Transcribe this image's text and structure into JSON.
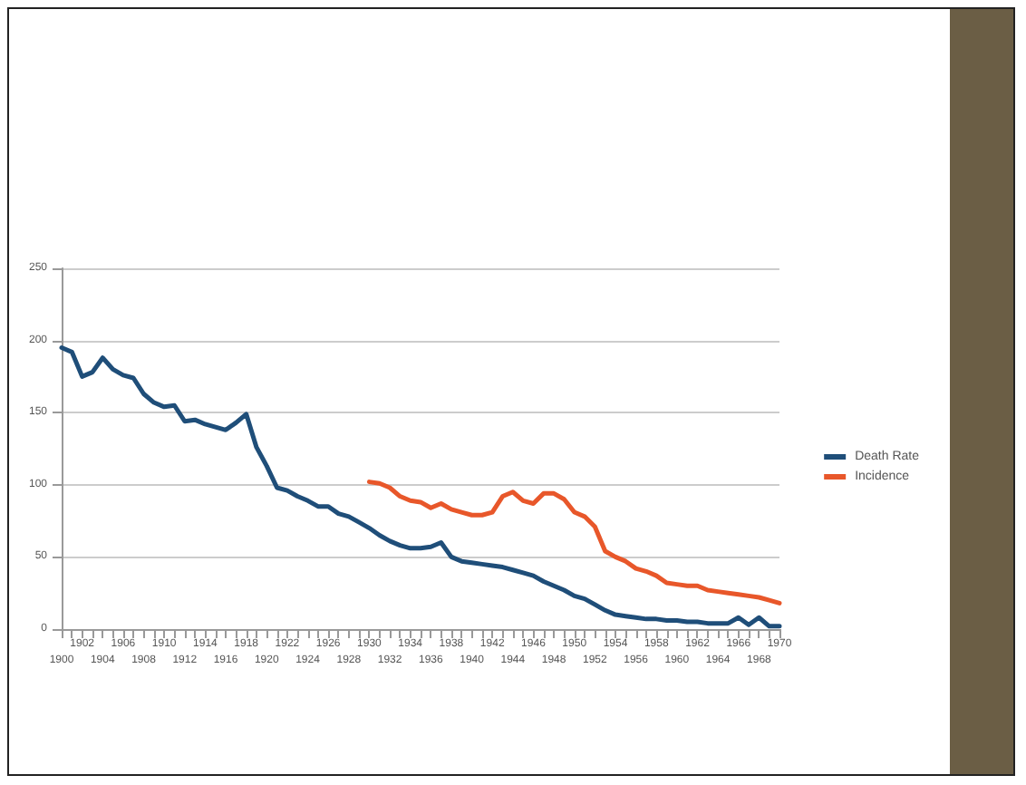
{
  "chart_data": {
    "type": "line",
    "categories": [
      "1900",
      null,
      "1902",
      null,
      "1904",
      null,
      "1906",
      null,
      "1908",
      null,
      "1910",
      null,
      "1912",
      null,
      "1914",
      null,
      "1916",
      null,
      "1918",
      null,
      "1920",
      null,
      "1922",
      null,
      "1924",
      null,
      "1926",
      null,
      "1928",
      null,
      "1930",
      null,
      "1932",
      null,
      "1934",
      null,
      "1936",
      null,
      "1938",
      null,
      "1940",
      null,
      "1942",
      null,
      "1944",
      null,
      "1946",
      null,
      "1948",
      null,
      "1950",
      null,
      "1952",
      null,
      "1954",
      null,
      "1956",
      null,
      "1958",
      null,
      "1960",
      null,
      "1962",
      null,
      "1964",
      null,
      "1966",
      null,
      "1968",
      null,
      "1970"
    ],
    "series": [
      {
        "name": "Death Rate",
        "color": "#1f4e79",
        "values": [
          195,
          192,
          175,
          178,
          188,
          180,
          176,
          174,
          163,
          157,
          154,
          155,
          144,
          145,
          142,
          140,
          138,
          143,
          149,
          126,
          113,
          98,
          96,
          92,
          89,
          85,
          85,
          80,
          78,
          74,
          70,
          65,
          61,
          58,
          56,
          56,
          57,
          60,
          50,
          47,
          46,
          45,
          44,
          43,
          41,
          39,
          37,
          33,
          30,
          27,
          23,
          21,
          17,
          13,
          10,
          9,
          8,
          7,
          7,
          6,
          6,
          5,
          5,
          4,
          4,
          4,
          8,
          3,
          8,
          2,
          2
        ]
      },
      {
        "name": "Incidence",
        "color": "#e8572a",
        "values": [
          null,
          null,
          null,
          null,
          null,
          null,
          null,
          null,
          null,
          null,
          null,
          null,
          null,
          null,
          null,
          null,
          null,
          null,
          null,
          null,
          null,
          null,
          null,
          null,
          null,
          null,
          null,
          null,
          null,
          null,
          102,
          101,
          98,
          92,
          89,
          88,
          84,
          87,
          83,
          81,
          79,
          79,
          81,
          92,
          95,
          89,
          87,
          94,
          94,
          90,
          81,
          78,
          71,
          54,
          50,
          47,
          42,
          40,
          37,
          32,
          31,
          30,
          30,
          27,
          26,
          25,
          24,
          23,
          22,
          20,
          18
        ]
      }
    ],
    "ylim": [
      0,
      250
    ],
    "yticks": [
      0,
      50,
      100,
      150,
      200,
      250
    ],
    "grid": "y",
    "legend": "right",
    "marker": "none",
    "line_style": "solid"
  }
}
